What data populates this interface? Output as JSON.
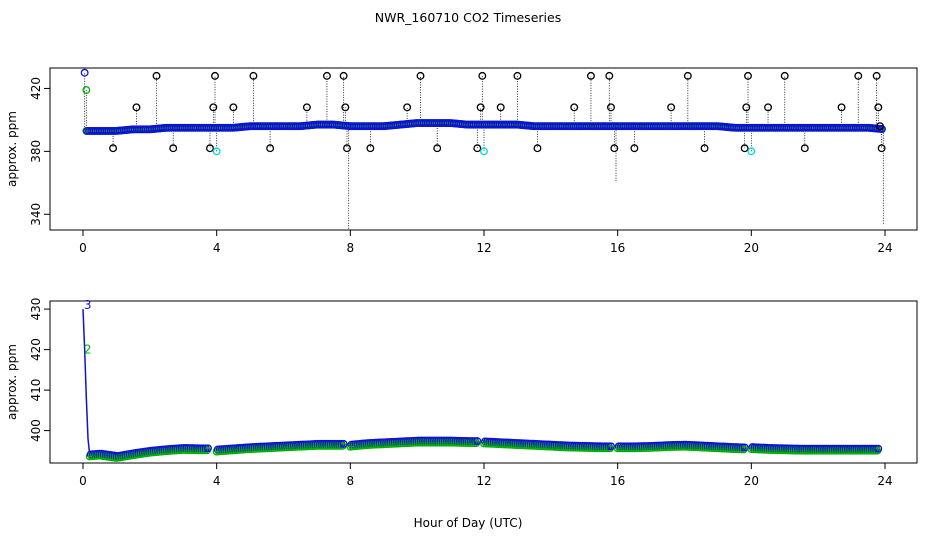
{
  "title": "NWR_160710  CO2 Timeseries",
  "xlabel": "Hour of Day (UTC)",
  "colors": {
    "main": "#1010d8",
    "secondary": "#00b000",
    "tertiary": "#e01010",
    "flag": "#000000",
    "cyan": "#00d8e8"
  },
  "chart_data": [
    {
      "type": "scatter",
      "panel": "top",
      "ylabel": "approx. ppm",
      "xlim": [
        0,
        24
      ],
      "ylim": [
        330,
        433
      ],
      "xticks": [
        0,
        4,
        8,
        12,
        16,
        20,
        24
      ],
      "yticks": [
        340,
        380,
        420
      ],
      "baseline": {
        "name": "CO2 (blue)",
        "x": [
          0.1,
          0.5,
          1.0,
          1.5,
          2.0,
          2.5,
          3.0,
          3.5,
          4.0,
          4.5,
          5.0,
          5.5,
          6.0,
          6.5,
          7.0,
          7.5,
          8.0,
          8.5,
          9.0,
          9.5,
          10.0,
          10.5,
          11.0,
          11.5,
          12.0,
          12.5,
          13.0,
          13.5,
          14.0,
          14.5,
          15.0,
          15.5,
          16.0,
          16.5,
          17.0,
          17.5,
          18.0,
          18.5,
          19.0,
          19.5,
          20.0,
          20.5,
          21.0,
          21.5,
          22.0,
          22.5,
          23.0,
          23.5,
          24.0
        ],
        "y": [
          393,
          393,
          393,
          394,
          394,
          395,
          395,
          395,
          395,
          395,
          396,
          396,
          396,
          396,
          397,
          397,
          396,
          396,
          396,
          397,
          398,
          398,
          398,
          397,
          397,
          397,
          397,
          396,
          396,
          396,
          396,
          396,
          396,
          396,
          396,
          396,
          396,
          396,
          396,
          395,
          395,
          395,
          395,
          395,
          395,
          395,
          395,
          395,
          394
        ]
      },
      "flagged_points": [
        {
          "x": 0.05,
          "y": 430,
          "color": "blue"
        },
        {
          "x": 0.1,
          "y": 419,
          "color": "green"
        },
        {
          "x": 0.9,
          "y": 382,
          "color": "black"
        },
        {
          "x": 1.6,
          "y": 408,
          "color": "black"
        },
        {
          "x": 2.2,
          "y": 428,
          "color": "black"
        },
        {
          "x": 2.7,
          "y": 382,
          "color": "black"
        },
        {
          "x": 3.8,
          "y": 382,
          "color": "black"
        },
        {
          "x": 3.9,
          "y": 408,
          "color": "black"
        },
        {
          "x": 3.95,
          "y": 428,
          "color": "black"
        },
        {
          "x": 4.0,
          "y": 380,
          "color": "cyan"
        },
        {
          "x": 4.5,
          "y": 408,
          "color": "black"
        },
        {
          "x": 5.1,
          "y": 428,
          "color": "black"
        },
        {
          "x": 5.6,
          "y": 382,
          "color": "black"
        },
        {
          "x": 6.7,
          "y": 408,
          "color": "black"
        },
        {
          "x": 7.3,
          "y": 428,
          "color": "black"
        },
        {
          "x": 7.8,
          "y": 428,
          "color": "black"
        },
        {
          "x": 7.85,
          "y": 408,
          "color": "black"
        },
        {
          "x": 7.9,
          "y": 382,
          "color": "black"
        },
        {
          "x": 8.6,
          "y": 382,
          "color": "black"
        },
        {
          "x": 9.7,
          "y": 408,
          "color": "black"
        },
        {
          "x": 10.1,
          "y": 428,
          "color": "black"
        },
        {
          "x": 10.6,
          "y": 382,
          "color": "black"
        },
        {
          "x": 11.8,
          "y": 382,
          "color": "black"
        },
        {
          "x": 11.9,
          "y": 408,
          "color": "black"
        },
        {
          "x": 11.95,
          "y": 428,
          "color": "black"
        },
        {
          "x": 12.0,
          "y": 380,
          "color": "cyan"
        },
        {
          "x": 12.5,
          "y": 408,
          "color": "black"
        },
        {
          "x": 13.0,
          "y": 428,
          "color": "black"
        },
        {
          "x": 13.6,
          "y": 382,
          "color": "black"
        },
        {
          "x": 14.7,
          "y": 408,
          "color": "black"
        },
        {
          "x": 15.2,
          "y": 428,
          "color": "black"
        },
        {
          "x": 15.75,
          "y": 428,
          "color": "black"
        },
        {
          "x": 15.8,
          "y": 408,
          "color": "black"
        },
        {
          "x": 15.9,
          "y": 382,
          "color": "black"
        },
        {
          "x": 16.5,
          "y": 382,
          "color": "black"
        },
        {
          "x": 17.6,
          "y": 408,
          "color": "black"
        },
        {
          "x": 18.1,
          "y": 428,
          "color": "black"
        },
        {
          "x": 18.6,
          "y": 382,
          "color": "black"
        },
        {
          "x": 19.8,
          "y": 382,
          "color": "black"
        },
        {
          "x": 19.85,
          "y": 408,
          "color": "black"
        },
        {
          "x": 19.9,
          "y": 428,
          "color": "black"
        },
        {
          "x": 20.0,
          "y": 380,
          "color": "cyan"
        },
        {
          "x": 20.5,
          "y": 408,
          "color": "black"
        },
        {
          "x": 21.0,
          "y": 428,
          "color": "black"
        },
        {
          "x": 21.6,
          "y": 382,
          "color": "black"
        },
        {
          "x": 22.7,
          "y": 408,
          "color": "black"
        },
        {
          "x": 23.2,
          "y": 428,
          "color": "black"
        },
        {
          "x": 23.75,
          "y": 428,
          "color": "black"
        },
        {
          "x": 23.8,
          "y": 408,
          "color": "black"
        },
        {
          "x": 23.85,
          "y": 396,
          "color": "black"
        },
        {
          "x": 23.9,
          "y": 382,
          "color": "black"
        }
      ]
    },
    {
      "type": "scatter",
      "panel": "bottom",
      "ylabel": "approx. ppm",
      "xlim": [
        0,
        24
      ],
      "ylim": [
        392,
        432
      ],
      "xticks": [
        0,
        4,
        8,
        12,
        16,
        20,
        24
      ],
      "yticks": [
        400,
        410,
        420,
        430
      ],
      "annotations": [
        {
          "text": "3",
          "x": 0.05,
          "y": 431,
          "color": "blue"
        },
        {
          "text": "2",
          "x": 0.05,
          "y": 420,
          "color": "green"
        }
      ],
      "segments": [
        {
          "x": [
            0.2,
            0.5,
            1.0,
            1.5,
            2.0,
            2.5,
            3.0,
            3.5,
            3.75
          ],
          "y": [
            394,
            394.2,
            393.6,
            394.3,
            394.9,
            395.3,
            395.6,
            395.5,
            395.5
          ]
        },
        {
          "x": [
            4.0,
            4.5,
            5.0,
            5.5,
            6.0,
            6.5,
            7.0,
            7.5,
            7.8
          ],
          "y": [
            395.2,
            395.5,
            395.8,
            396.0,
            396.2,
            396.4,
            396.6,
            396.6,
            396.6
          ]
        },
        {
          "x": [
            8.0,
            8.5,
            9.0,
            9.5,
            10.0,
            10.5,
            11.0,
            11.5,
            11.8
          ],
          "y": [
            396.4,
            396.8,
            397.0,
            397.2,
            397.4,
            397.4,
            397.4,
            397.3,
            397.3
          ]
        },
        {
          "x": [
            12.0,
            12.5,
            13.0,
            13.5,
            14.0,
            14.5,
            15.0,
            15.5,
            15.8
          ],
          "y": [
            397.2,
            397.0,
            396.8,
            396.6,
            396.4,
            396.2,
            396.1,
            396.0,
            396.0
          ]
        },
        {
          "x": [
            16.0,
            16.5,
            17.0,
            17.5,
            18.0,
            18.5,
            19.0,
            19.5,
            19.8
          ],
          "y": [
            396.0,
            396.0,
            396.1,
            396.3,
            396.4,
            396.2,
            396.0,
            395.8,
            395.7
          ]
        },
        {
          "x": [
            20.0,
            20.5,
            21.0,
            21.5,
            22.0,
            22.5,
            23.0,
            23.5,
            23.8
          ],
          "y": [
            395.8,
            395.6,
            395.5,
            395.4,
            395.4,
            395.4,
            395.4,
            395.4,
            395.4
          ]
        }
      ],
      "initial_spike": {
        "x": [
          0.0,
          0.05,
          0.1,
          0.15,
          0.2
        ],
        "y": [
          430,
          420,
          408,
          398,
          394
        ]
      }
    }
  ]
}
